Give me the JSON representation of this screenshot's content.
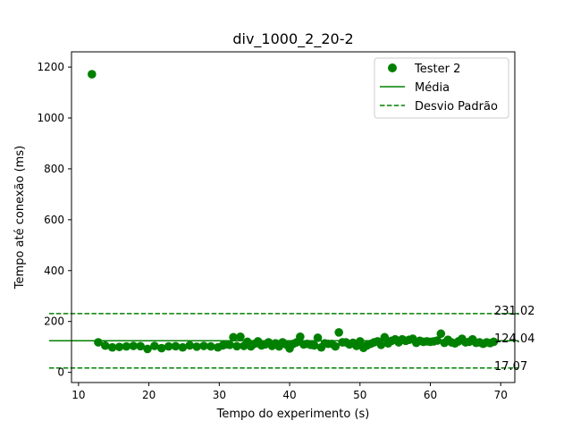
{
  "chart_data": {
    "type": "scatter",
    "title": "div_1000_2_20-2",
    "xlabel": "Tempo do experimento (s)",
    "ylabel": "Tempo até conexão (ms)",
    "xlim": [
      9,
      72
    ],
    "ylim": [
      -40,
      1260
    ],
    "xticks": [
      10,
      20,
      30,
      40,
      50,
      60,
      70
    ],
    "yticks": [
      0,
      200,
      400,
      600,
      800,
      1000,
      1200
    ],
    "grid": false,
    "legend_position": "top-right",
    "legend": [
      "Tester 2",
      "Média",
      "Desvio Padrão"
    ],
    "color": "#008000",
    "mean": 124.04,
    "std_upper": 231.02,
    "std_lower": 17.07,
    "mean_label": "124.04",
    "upper_label": "231.02",
    "lower_label": "17.07",
    "points": [
      [
        11.9,
        1172
      ],
      [
        12.8,
        118
      ],
      [
        13.8,
        105
      ],
      [
        14.8,
        98
      ],
      [
        15.8,
        100
      ],
      [
        16.8,
        102
      ],
      [
        17.8,
        104
      ],
      [
        18.8,
        103
      ],
      [
        19.8,
        92
      ],
      [
        20.8,
        104
      ],
      [
        21.8,
        95
      ],
      [
        22.8,
        102
      ],
      [
        23.8,
        103
      ],
      [
        24.8,
        98
      ],
      [
        25.8,
        106
      ],
      [
        26.8,
        101
      ],
      [
        27.8,
        104
      ],
      [
        28.8,
        102
      ],
      [
        29.8,
        98
      ],
      [
        30.5,
        106
      ],
      [
        31.0,
        110
      ],
      [
        31.5,
        108
      ],
      [
        32.0,
        138
      ],
      [
        32.5,
        103
      ],
      [
        33.0,
        140
      ],
      [
        33.5,
        104
      ],
      [
        34.0,
        120
      ],
      [
        34.5,
        102
      ],
      [
        35.0,
        112
      ],
      [
        35.5,
        122
      ],
      [
        36.0,
        106
      ],
      [
        36.5,
        110
      ],
      [
        37.0,
        118
      ],
      [
        37.5,
        104
      ],
      [
        38.0,
        114
      ],
      [
        38.5,
        102
      ],
      [
        39.0,
        118
      ],
      [
        39.5,
        110
      ],
      [
        40.0,
        94
      ],
      [
        40.5,
        112
      ],
      [
        41.0,
        118
      ],
      [
        41.5,
        140
      ],
      [
        42.0,
        110
      ],
      [
        42.5,
        112
      ],
      [
        43.0,
        108
      ],
      [
        43.5,
        106
      ],
      [
        44.0,
        136
      ],
      [
        44.5,
        98
      ],
      [
        45.0,
        114
      ],
      [
        45.5,
        112
      ],
      [
        46.0,
        112
      ],
      [
        46.5,
        102
      ],
      [
        47.0,
        157
      ],
      [
        47.5,
        118
      ],
      [
        48.0,
        118
      ],
      [
        48.5,
        110
      ],
      [
        49.0,
        116
      ],
      [
        49.5,
        104
      ],
      [
        50.0,
        122
      ],
      [
        50.5,
        96
      ],
      [
        51.0,
        106
      ],
      [
        51.5,
        112
      ],
      [
        52.0,
        118
      ],
      [
        52.5,
        122
      ],
      [
        53.0,
        108
      ],
      [
        53.5,
        138
      ],
      [
        54.0,
        114
      ],
      [
        54.5,
        124
      ],
      [
        55.0,
        130
      ],
      [
        55.5,
        118
      ],
      [
        56.0,
        130
      ],
      [
        56.5,
        124
      ],
      [
        57.0,
        128
      ],
      [
        57.5,
        132
      ],
      [
        58.0,
        116
      ],
      [
        58.5,
        124
      ],
      [
        59.0,
        120
      ],
      [
        59.5,
        122
      ],
      [
        60.0,
        120
      ],
      [
        60.5,
        122
      ],
      [
        61.0,
        125
      ],
      [
        61.5,
        152
      ],
      [
        62.0,
        116
      ],
      [
        62.5,
        128
      ],
      [
        63.0,
        118
      ],
      [
        63.5,
        114
      ],
      [
        64.0,
        122
      ],
      [
        64.5,
        132
      ],
      [
        65.0,
        118
      ],
      [
        65.5,
        120
      ],
      [
        66.0,
        130
      ],
      [
        66.5,
        116
      ],
      [
        67.0,
        118
      ],
      [
        67.5,
        112
      ],
      [
        68.0,
        118
      ],
      [
        68.5,
        115
      ],
      [
        69.0,
        120
      ]
    ]
  }
}
